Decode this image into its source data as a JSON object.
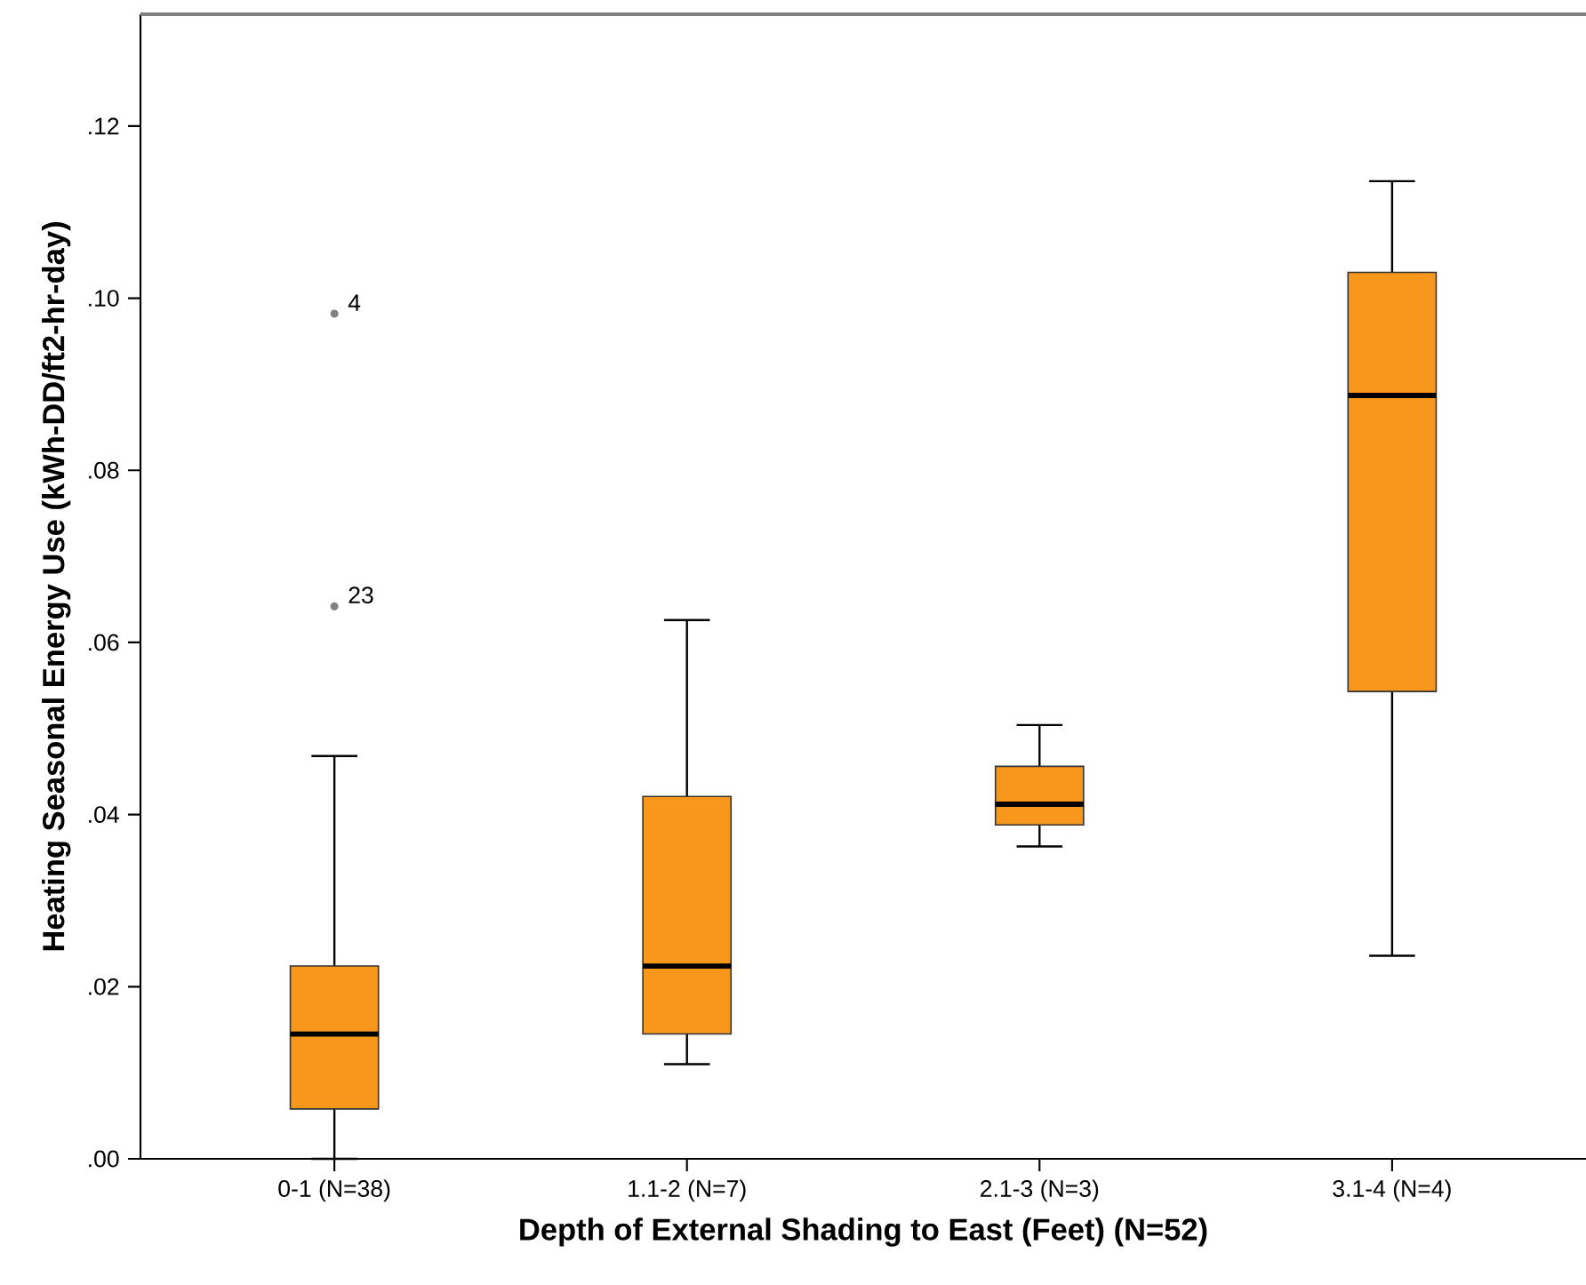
{
  "chart_data": {
    "type": "box",
    "xlabel": "Depth of External Shading to East (Feet) (N=52)",
    "ylabel": "Heating Seasonal Energy Use (kWh-DD/ft2-hr-day)",
    "categories": [
      "0-1 (N=38)",
      "1.1-2 (N=7)",
      "2.1-3 (N=3)",
      "3.1-4 (N=4)"
    ],
    "ylim": [
      0,
      0.133
    ],
    "yticks": [
      {
        "value": 0,
        "label": ".00"
      },
      {
        "value": 0.02,
        "label": ".02"
      },
      {
        "value": 0.04,
        "label": ".04"
      },
      {
        "value": 0.06,
        "label": ".06"
      },
      {
        "value": 0.08,
        "label": ".08"
      },
      {
        "value": 0.1,
        "label": ".10"
      },
      {
        "value": 0.12,
        "label": ".12"
      }
    ],
    "series": [
      {
        "color": "#f7981d",
        "boxes": [
          {
            "low": 0,
            "q1": 0.0058,
            "median": 0.0145,
            "q3": 0.0224,
            "high": 0.0468,
            "outliers": [
              0.0982,
              0.0642
            ]
          },
          {
            "low": 0.011,
            "q1": 0.0145,
            "median": 0.0224,
            "q3": 0.0421,
            "high": 0.0626
          },
          {
            "low": 0.0363,
            "q1": 0.0388,
            "median": 0.0412,
            "q3": 0.0456,
            "high": 0.0504
          },
          {
            "low": 0.0236,
            "q1": 0.0543,
            "median": 0.0887,
            "q3": 0.103,
            "high": 0.1136
          }
        ]
      }
    ],
    "annotations": [
      "4",
      "23"
    ]
  }
}
